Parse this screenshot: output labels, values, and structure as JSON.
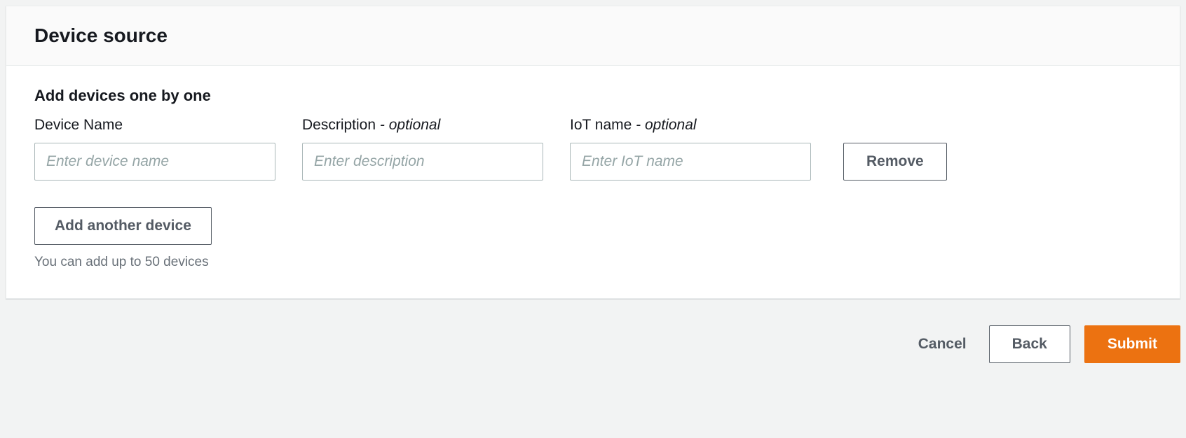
{
  "panel": {
    "title": "Device source",
    "subsection_title": "Add devices one by one",
    "fields": {
      "device_name": {
        "label": "Device Name",
        "placeholder": "Enter device name"
      },
      "description": {
        "label_main": "Description ",
        "label_optional": "- optional",
        "placeholder": "Enter description"
      },
      "iot_name": {
        "label_main": "IoT name ",
        "label_optional": "- optional",
        "placeholder": "Enter IoT name"
      }
    },
    "remove_label": "Remove",
    "add_label": "Add another device",
    "hint": "You can add up to 50 devices"
  },
  "footer": {
    "cancel_label": "Cancel",
    "back_label": "Back",
    "submit_label": "Submit"
  },
  "colors": {
    "page_bg": "#f2f3f3",
    "panel_bg": "#ffffff",
    "header_bg": "#fafafa",
    "border": "#eaeded",
    "text_primary": "#16191f",
    "text_secondary": "#545b64",
    "text_muted": "#687078",
    "placeholder": "#95a5a6",
    "input_border": "#aab7b8",
    "primary_action": "#ec7211"
  }
}
